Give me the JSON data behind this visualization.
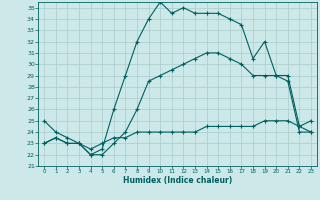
{
  "title": "",
  "xlabel": "Humidex (Indice chaleur)",
  "ylabel": "",
  "xlim": [
    -0.5,
    23.5
  ],
  "ylim": [
    21,
    35.5
  ],
  "yticks": [
    21,
    22,
    23,
    24,
    25,
    26,
    27,
    28,
    29,
    30,
    31,
    32,
    33,
    34,
    35
  ],
  "xticks": [
    0,
    1,
    2,
    3,
    4,
    5,
    6,
    7,
    8,
    9,
    10,
    11,
    12,
    13,
    14,
    15,
    16,
    17,
    18,
    19,
    20,
    21,
    22,
    23
  ],
  "bg_color": "#cce8e8",
  "line_color": "#005f5f",
  "grid_color": "#aacccc",
  "line1_x": [
    0,
    1,
    2,
    3,
    4,
    5,
    6,
    7,
    8,
    9,
    10,
    11,
    12,
    13,
    14,
    15,
    16,
    17,
    18,
    19,
    20,
    21,
    22,
    23
  ],
  "line1_y": [
    25.0,
    24.0,
    23.5,
    23.0,
    22.0,
    22.5,
    26.0,
    29.0,
    32.0,
    34.0,
    35.5,
    34.5,
    35.0,
    34.5,
    34.5,
    34.5,
    34.0,
    33.5,
    30.5,
    32.0,
    29.0,
    29.0,
    24.5,
    24.0
  ],
  "line2_x": [
    0,
    1,
    2,
    3,
    4,
    5,
    6,
    7,
    8,
    9,
    10,
    11,
    12,
    13,
    14,
    15,
    16,
    17,
    18,
    19,
    20,
    21,
    22,
    23
  ],
  "line2_y": [
    23.0,
    23.5,
    23.0,
    23.0,
    22.5,
    23.0,
    23.5,
    23.5,
    24.0,
    24.0,
    24.0,
    24.0,
    24.0,
    24.0,
    24.5,
    24.5,
    24.5,
    24.5,
    24.5,
    25.0,
    25.0,
    25.0,
    24.5,
    25.0
  ],
  "line3_x": [
    0,
    1,
    2,
    3,
    4,
    5,
    6,
    7,
    8,
    9,
    10,
    11,
    12,
    13,
    14,
    15,
    16,
    17,
    18,
    19,
    20,
    21,
    22,
    23
  ],
  "line3_y": [
    23.0,
    23.5,
    23.0,
    23.0,
    22.0,
    22.0,
    23.0,
    24.0,
    26.0,
    28.5,
    29.0,
    29.5,
    30.0,
    30.5,
    31.0,
    31.0,
    30.5,
    30.0,
    29.0,
    29.0,
    29.0,
    28.5,
    24.0,
    24.0
  ]
}
